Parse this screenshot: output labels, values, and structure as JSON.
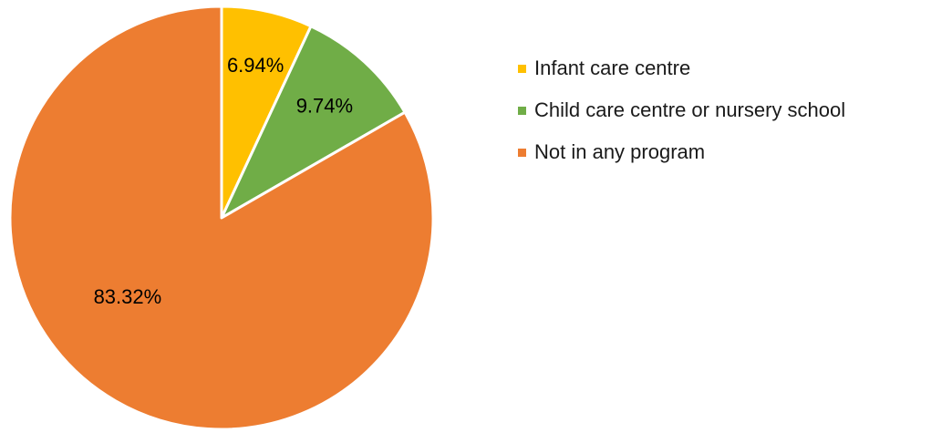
{
  "chart_data": {
    "type": "pie",
    "title": "",
    "slices": [
      {
        "name": "Infant care centre",
        "value": 6.94,
        "label": "6.94%",
        "color": "#FFC000"
      },
      {
        "name": "Child care centre or nursery school",
        "value": 9.74,
        "label": "9.74%",
        "color": "#70AD47"
      },
      {
        "name": "Not in any program",
        "value": 83.32,
        "label": "83.32%",
        "color": "#ED7D31"
      }
    ],
    "start_angle": "12 o'clock",
    "direction": "clockwise",
    "legend_position": "right",
    "slice_border_color": "#FFFFFF"
  }
}
